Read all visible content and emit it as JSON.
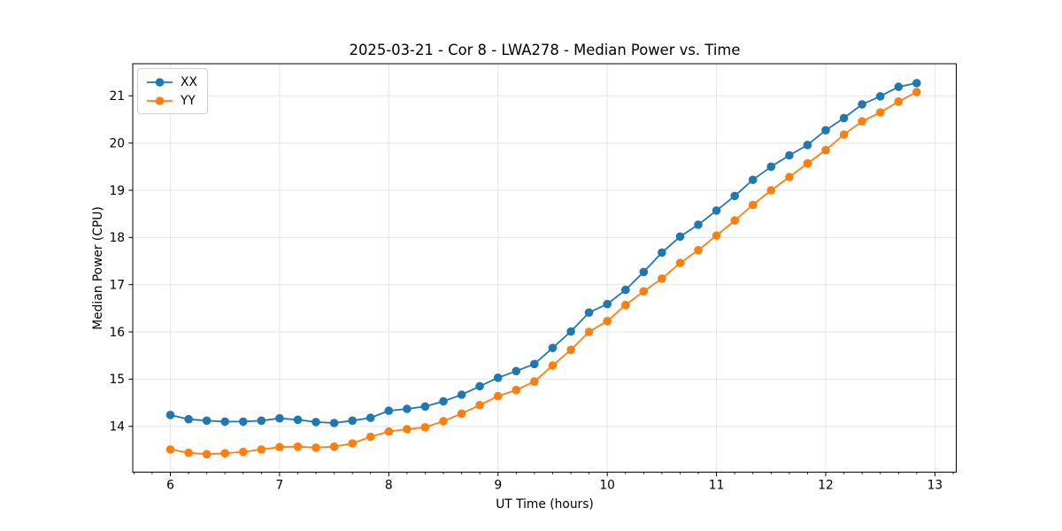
{
  "figure": {
    "background": "#ffffff"
  },
  "chart_data": {
    "type": "line",
    "title": "2025-03-21 - Cor 8 - LWA278 - Median Power vs. Time",
    "xlabel": "UT Time (hours)",
    "ylabel": "Median Power (CPU)",
    "grid": true,
    "legend_position": "upper left",
    "grid_color": "#e5e5e5",
    "axis_color": "#000000",
    "text_color": "#000000",
    "xlim": [
      5.656,
      13.195
    ],
    "ylim": [
      13.03,
      21.68
    ],
    "xticks": [
      6,
      7,
      8,
      9,
      10,
      11,
      12,
      13
    ],
    "yticks": [
      14,
      15,
      16,
      17,
      18,
      19,
      20,
      21
    ],
    "minor_xtick_step": 0.16667,
    "x": [
      6.0,
      6.167,
      6.333,
      6.5,
      6.667,
      6.833,
      7.0,
      7.167,
      7.333,
      7.5,
      7.667,
      7.833,
      8.0,
      8.167,
      8.333,
      8.5,
      8.667,
      8.833,
      9.0,
      9.167,
      9.333,
      9.5,
      9.667,
      9.833,
      10.0,
      10.167,
      10.333,
      10.5,
      10.667,
      10.833,
      11.0,
      11.167,
      11.333,
      11.5,
      11.667,
      11.833,
      12.0,
      12.167,
      12.333,
      12.5,
      12.667,
      12.833
    ],
    "series": [
      {
        "name": "XX",
        "color": "#1f77b4",
        "values": [
          14.24,
          14.15,
          14.12,
          14.1,
          14.1,
          14.12,
          14.17,
          14.14,
          14.09,
          14.07,
          14.12,
          14.18,
          14.33,
          14.37,
          14.42,
          14.53,
          14.67,
          14.85,
          15.03,
          15.17,
          15.32,
          15.66,
          16.01,
          16.41,
          16.59,
          16.89,
          17.27,
          17.68,
          18.02,
          18.27,
          18.57,
          18.88,
          19.22,
          19.5,
          19.74,
          19.96,
          20.27,
          20.53,
          20.82,
          20.99,
          21.19,
          21.27
        ]
      },
      {
        "name": "YY",
        "color": "#ff7f0e",
        "values": [
          13.51,
          13.44,
          13.41,
          13.43,
          13.46,
          13.51,
          13.56,
          13.57,
          13.55,
          13.57,
          13.64,
          13.78,
          13.89,
          13.94,
          13.98,
          14.11,
          14.27,
          14.45,
          14.64,
          14.77,
          14.95,
          15.29,
          15.62,
          16.0,
          16.23,
          16.57,
          16.86,
          17.13,
          17.46,
          17.73,
          18.04,
          18.36,
          18.69,
          19.0,
          19.28,
          19.57,
          19.85,
          20.18,
          20.46,
          20.65,
          20.88,
          21.08
        ]
      }
    ]
  }
}
